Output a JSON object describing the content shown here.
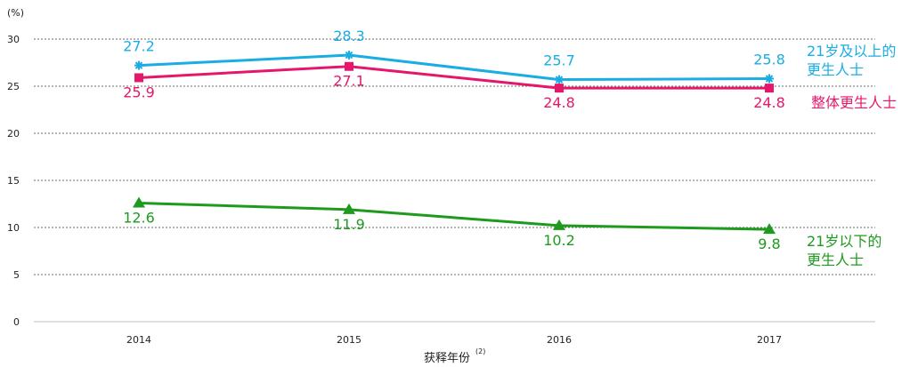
{
  "chart_data": {
    "type": "line",
    "unit_label": "(%)",
    "xlabel": "获释年份",
    "xlabel_note": "(2)",
    "categories": [
      "2014",
      "2015",
      "2016",
      "2017"
    ],
    "ylim": [
      0,
      30
    ],
    "yticks": [
      "0",
      "5",
      "10",
      "15",
      "20",
      "25",
      "30"
    ],
    "grid": true,
    "grid_style": "dashed",
    "series": [
      {
        "name_lines": [
          "21岁及以上的",
          "更生人士"
        ],
        "values": [
          27.2,
          28.3,
          25.7,
          25.8
        ],
        "labels": [
          "27.2",
          "28.3",
          "25.7",
          "25.8"
        ],
        "color": "#1AADE4",
        "marker": "star",
        "label_position": "above"
      },
      {
        "name_lines": [
          "整体更生人士"
        ],
        "values": [
          25.9,
          27.1,
          24.8,
          24.8
        ],
        "labels": [
          "25.9",
          "27.1",
          "24.8",
          "24.8"
        ],
        "color": "#E6176B",
        "marker": "square",
        "label_position": "below"
      },
      {
        "name_lines": [
          "21岁以下的",
          "更生人士"
        ],
        "values": [
          12.6,
          11.9,
          10.2,
          9.8
        ],
        "labels": [
          "12.6",
          "11.9",
          "10.2",
          "9.8"
        ],
        "color": "#1E9A1E",
        "marker": "triangle",
        "label_position": "below"
      }
    ]
  }
}
